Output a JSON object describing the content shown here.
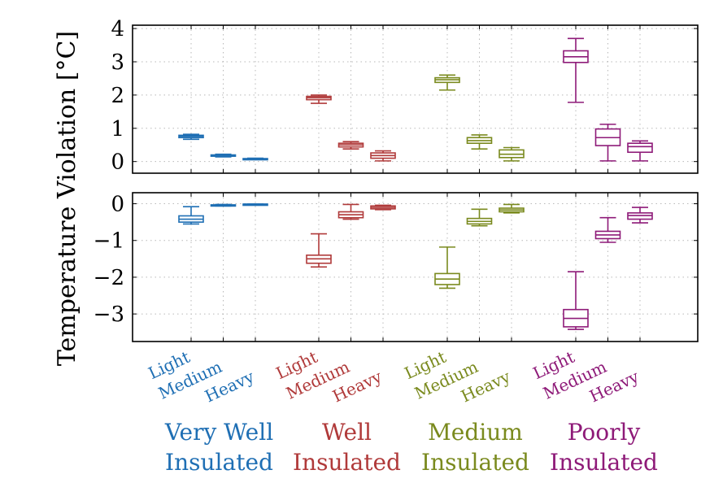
{
  "chart_data": {
    "type": "box",
    "ylabel": "Temperature Violation [°C]",
    "categories": [
      "Light",
      "Medium",
      "Heavy"
    ],
    "groups": [
      {
        "label_line1": "Very Well",
        "label_line2": "Insulated",
        "color": "#1f6fb4"
      },
      {
        "label_line1": "Well",
        "label_line2": "Insulated",
        "color": "#b03a3a"
      },
      {
        "label_line1": "Medium",
        "label_line2": "Insulated",
        "color": "#7a8a1e"
      },
      {
        "label_line1": "Poorly",
        "label_line2": "Insulated",
        "color": "#8e1a78"
      }
    ],
    "panels": [
      {
        "ylim": [
          -0.35,
          4.1
        ],
        "yticks": [
          0,
          1,
          2,
          3,
          4
        ],
        "ytick_labels": [
          "0",
          "1",
          "2",
          "3",
          "4"
        ],
        "boxes": [
          {
            "group": 0,
            "cat": 0,
            "min": 0.67,
            "q1": 0.72,
            "median": 0.76,
            "q3": 0.79,
            "max": 0.82
          },
          {
            "group": 0,
            "cat": 1,
            "min": 0.14,
            "q1": 0.16,
            "median": 0.18,
            "q3": 0.2,
            "max": 0.22
          },
          {
            "group": 0,
            "cat": 2,
            "min": 0.06,
            "q1": 0.07,
            "median": 0.08,
            "q3": 0.09,
            "max": 0.1
          },
          {
            "group": 1,
            "cat": 0,
            "min": 1.75,
            "q1": 1.86,
            "median": 1.92,
            "q3": 1.96,
            "max": 2.0
          },
          {
            "group": 1,
            "cat": 1,
            "min": 0.38,
            "q1": 0.44,
            "median": 0.5,
            "q3": 0.55,
            "max": 0.6
          },
          {
            "group": 1,
            "cat": 2,
            "min": 0.02,
            "q1": 0.1,
            "median": 0.18,
            "q3": 0.26,
            "max": 0.32
          },
          {
            "group": 2,
            "cat": 0,
            "min": 2.15,
            "q1": 2.38,
            "median": 2.46,
            "q3": 2.52,
            "max": 2.6
          },
          {
            "group": 2,
            "cat": 1,
            "min": 0.38,
            "q1": 0.55,
            "median": 0.63,
            "q3": 0.72,
            "max": 0.8
          },
          {
            "group": 2,
            "cat": 2,
            "min": 0.02,
            "q1": 0.12,
            "median": 0.22,
            "q3": 0.35,
            "max": 0.42
          },
          {
            "group": 3,
            "cat": 0,
            "min": 1.78,
            "q1": 2.98,
            "median": 3.15,
            "q3": 3.33,
            "max": 3.7
          },
          {
            "group": 3,
            "cat": 1,
            "min": 0.02,
            "q1": 0.48,
            "median": 0.72,
            "q3": 0.98,
            "max": 1.12
          },
          {
            "group": 3,
            "cat": 2,
            "min": 0.02,
            "q1": 0.28,
            "median": 0.45,
            "q3": 0.55,
            "max": 0.62
          }
        ]
      },
      {
        "ylim": [
          -3.75,
          0.3
        ],
        "yticks": [
          0,
          -1,
          -2,
          -3
        ],
        "ytick_labels": [
          "0",
          "−1",
          "−2",
          "−3"
        ],
        "boxes": [
          {
            "group": 0,
            "cat": 0,
            "min": -0.55,
            "q1": -0.5,
            "median": -0.42,
            "q3": -0.33,
            "max": -0.08
          },
          {
            "group": 0,
            "cat": 1,
            "min": -0.06,
            "q1": -0.05,
            "median": -0.04,
            "q3": -0.03,
            "max": -0.02
          },
          {
            "group": 0,
            "cat": 2,
            "min": -0.01,
            "q1": -0.01,
            "median": -0.01,
            "q3": -0.01,
            "max": -0.01
          },
          {
            "group": 1,
            "cat": 0,
            "min": -1.72,
            "q1": -1.62,
            "median": -1.5,
            "q3": -1.4,
            "max": -0.82
          },
          {
            "group": 1,
            "cat": 1,
            "min": -0.42,
            "q1": -0.38,
            "median": -0.3,
            "q3": -0.22,
            "max": -0.02
          },
          {
            "group": 1,
            "cat": 2,
            "min": -0.16,
            "q1": -0.14,
            "median": -0.1,
            "q3": -0.06,
            "max": -0.04
          },
          {
            "group": 2,
            "cat": 0,
            "min": -2.3,
            "q1": -2.2,
            "median": -2.05,
            "q3": -1.9,
            "max": -1.18
          },
          {
            "group": 2,
            "cat": 1,
            "min": -0.6,
            "q1": -0.55,
            "median": -0.48,
            "q3": -0.4,
            "max": -0.15
          },
          {
            "group": 2,
            "cat": 2,
            "min": -0.25,
            "q1": -0.22,
            "median": -0.17,
            "q3": -0.12,
            "max": -0.02
          },
          {
            "group": 3,
            "cat": 0,
            "min": -3.42,
            "q1": -3.35,
            "median": -3.12,
            "q3": -2.88,
            "max": -1.85
          },
          {
            "group": 3,
            "cat": 1,
            "min": -1.05,
            "q1": -0.95,
            "median": -0.85,
            "q3": -0.75,
            "max": -0.38
          },
          {
            "group": 3,
            "cat": 2,
            "min": -0.52,
            "q1": -0.42,
            "median": -0.32,
            "q3": -0.25,
            "max": -0.1
          }
        ]
      }
    ]
  }
}
